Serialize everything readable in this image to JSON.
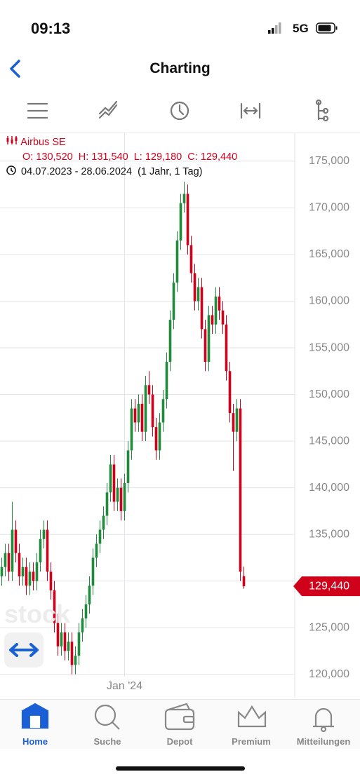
{
  "status": {
    "time": "09:13",
    "network": "5G"
  },
  "header": {
    "title": "Charting"
  },
  "chart_info": {
    "name": "Airbus SE",
    "ohlc": [
      "O: 130,520",
      "H: 131,540",
      "L: 129,180",
      "C: 129,440"
    ],
    "range": "04.07.2023 - 28.06.2024",
    "interval": "(1 Jahr, 1 Tag)"
  },
  "watermark": "stock",
  "chart_data": {
    "type": "candlestick",
    "categories": [
      null,
      null,
      null,
      null,
      null,
      null,
      null,
      null,
      null,
      null,
      null,
      null,
      null,
      null,
      null,
      null,
      null,
      null,
      null,
      null,
      null,
      null,
      null,
      null,
      null,
      null,
      null,
      null,
      null,
      null,
      null,
      null,
      null,
      null,
      null,
      "Jan '24",
      null,
      null,
      null,
      null,
      null,
      null,
      null,
      null,
      null,
      null,
      null,
      null,
      null,
      null,
      null,
      null,
      null,
      null,
      null,
      null,
      null,
      null,
      null,
      null,
      null,
      null,
      null,
      null,
      null,
      null,
      null,
      null,
      null,
      null
    ],
    "open": [
      130500,
      131500,
      133000,
      131000,
      135500,
      133000,
      130500,
      131500,
      129500,
      131000,
      130000,
      132000,
      134500,
      135500,
      131000,
      129000,
      125500,
      123000,
      124500,
      122500,
      123500,
      121000,
      122000,
      124500,
      126000,
      127500,
      129500,
      132500,
      134000,
      135500,
      137000,
      139500,
      142500,
      138500,
      140000,
      137500,
      140500,
      144000,
      148500,
      147000,
      149000,
      146000,
      151000,
      150000,
      146500,
      144000,
      147000,
      149500,
      153500,
      158000,
      162000,
      166500,
      170500,
      171500,
      166000,
      163000,
      160000,
      161500,
      157000,
      153500,
      158500,
      157500,
      160500,
      159000,
      157500,
      152500,
      148000,
      146000,
      148500,
      130520
    ],
    "high": [
      132500,
      134000,
      134000,
      138500,
      136500,
      134000,
      132500,
      132500,
      132000,
      132000,
      133000,
      135500,
      136500,
      136500,
      132000,
      130000,
      126500,
      125500,
      125500,
      124500,
      124500,
      123000,
      125500,
      127000,
      128500,
      130500,
      133500,
      135000,
      136500,
      138000,
      140500,
      143500,
      143500,
      141000,
      141000,
      141500,
      145000,
      149500,
      149500,
      150000,
      150000,
      152000,
      152500,
      151000,
      147500,
      148000,
      150500,
      154500,
      159000,
      163000,
      167500,
      171500,
      172800,
      172500,
      167000,
      164000,
      162500,
      162500,
      158000,
      159500,
      159500,
      161500,
      161500,
      160000,
      158500,
      153500,
      149000,
      149500,
      149500,
      131540
    ],
    "low": [
      129500,
      130500,
      130000,
      130000,
      132000,
      129500,
      129500,
      128500,
      128500,
      129000,
      129000,
      131000,
      133500,
      130000,
      128000,
      124500,
      122000,
      122000,
      121500,
      121500,
      120000,
      120000,
      121000,
      123500,
      125000,
      126500,
      128500,
      131500,
      133000,
      134500,
      136000,
      138500,
      137500,
      137500,
      136500,
      136500,
      139500,
      143000,
      146000,
      146000,
      145000,
      145000,
      149000,
      145500,
      143000,
      143000,
      146000,
      148500,
      152500,
      157000,
      161000,
      165500,
      169500,
      165000,
      162000,
      159000,
      159000,
      156000,
      152500,
      152500,
      156500,
      156500,
      158000,
      156500,
      151500,
      147000,
      141800,
      145000,
      130000,
      129180
    ],
    "close": [
      131500,
      133000,
      131000,
      135500,
      133000,
      130500,
      131500,
      129500,
      131000,
      130000,
      132000,
      134500,
      135500,
      131000,
      129000,
      125500,
      123000,
      124500,
      122500,
      123500,
      121000,
      122000,
      124500,
      126000,
      127500,
      129500,
      132500,
      134000,
      135500,
      137000,
      139500,
      142500,
      138500,
      140000,
      137500,
      140500,
      144000,
      148500,
      147000,
      149000,
      146000,
      151000,
      150000,
      146500,
      144000,
      147000,
      149500,
      153500,
      158000,
      162000,
      166500,
      170500,
      171500,
      166000,
      163000,
      160000,
      161500,
      157000,
      153500,
      158500,
      157500,
      160500,
      159000,
      157500,
      152500,
      148000,
      146000,
      148500,
      131000,
      129440
    ],
    "up_color": "#1f8b3b",
    "down_color": "#d0021b",
    "ylim": [
      117500,
      178000
    ],
    "yticks": [
      {
        "value": 120000,
        "label": "120,000"
      },
      {
        "value": 125000,
        "label": "125,000"
      },
      {
        "value": 130000,
        "label": "130,000"
      },
      {
        "value": 135000,
        "label": "135,000"
      },
      {
        "value": 140000,
        "label": "140,000"
      },
      {
        "value": 145000,
        "label": "145,000"
      },
      {
        "value": 150000,
        "label": "150,000"
      },
      {
        "value": 155000,
        "label": "155,000"
      },
      {
        "value": 160000,
        "label": "160,000"
      },
      {
        "value": 165000,
        "label": "165,000"
      },
      {
        "value": 170000,
        "label": "170,000"
      },
      {
        "value": 175000,
        "label": "175,000"
      }
    ],
    "grid": true,
    "last_price": {
      "value": 129440,
      "label": "129,440"
    }
  },
  "tabs": [
    "Home",
    "Suche",
    "Depot",
    "Premium",
    "Mitteilungen"
  ]
}
